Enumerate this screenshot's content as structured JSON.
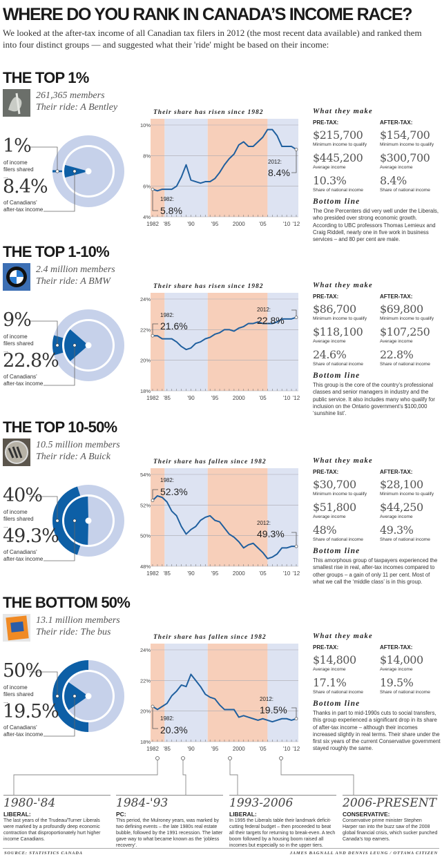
{
  "header": {
    "title": "WHERE DO YOU RANK IN CANADA’S INCOME RACE?",
    "intro": "We looked at the after-tax income of all Canadian tax filers in 2012 (the most recent data available) and ranked them into four distinct groups — and suggested what their 'ride' might be based on their income:"
  },
  "colors": {
    "dark_blue": "#0d5fa6",
    "light_blue": "#c6d1ea",
    "line": "#1f5f9e",
    "liberal_shade": "#f7cfba",
    "conservative_shade": "#dde3f2"
  },
  "sections": [
    {
      "title": "THE TOP 1%",
      "members": "261,365 members",
      "ride": "Their ride: A Bentley",
      "logo_icon": "bentley-hood-ornament-icon",
      "donut": {
        "filers_pct": "1%",
        "filers_label": "of income filers shared ...",
        "income_pct": "8.4%",
        "income_label": "of Canadians' after-tax income",
        "filers_share": 1,
        "income_share": 8.4
      },
      "make": {
        "title": "What they make",
        "pre_label": "PRE-TAX:",
        "after_label": "AFTER-TAX:",
        "rows": [
          {
            "pre_value": "$215,700",
            "pre_sub": "Minimum income to qualify",
            "after_value": "$154,700",
            "after_sub": "Minimum income to qualify"
          },
          {
            "pre_value": "$445,200",
            "pre_sub": "Average income",
            "after_value": "$300,700",
            "after_sub": "Average income"
          },
          {
            "pre_value": "10.3%",
            "pre_sub": "Share of national income",
            "after_value": "8.4%",
            "after_sub": "Share of national income"
          }
        ]
      },
      "bottom_line": {
        "title": "Bottom line",
        "text": "The One Percenters did very well under the Liberals, who presided over strong economic growth. According to UBC professors Thomas Lemieux and Craig Riddell, nearly one in five work in business services – and 80 per cent are male."
      }
    },
    {
      "title": "THE TOP 1-10%",
      "members": "2.4 million members",
      "ride": "Their ride: A BMW",
      "logo_icon": "bmw-roundel-icon",
      "donut": {
        "filers_pct": "9%",
        "filers_label": "of income filers shared ...",
        "income_pct": "22.8%",
        "income_label": "of Canadians' after-tax income",
        "filers_share": 9,
        "income_share": 22.8
      },
      "make": {
        "title": "What they make",
        "pre_label": "PRE-TAX:",
        "after_label": "AFTER-TAX:",
        "rows": [
          {
            "pre_value": "$86,700",
            "pre_sub": "Minimum income to qualify",
            "after_value": "$69,800",
            "after_sub": "Minimum income to qualify"
          },
          {
            "pre_value": "$118,100",
            "pre_sub": "Average income",
            "after_value": "$107,250",
            "after_sub": "Average income"
          },
          {
            "pre_value": "24.6%",
            "pre_sub": "Share of national income",
            "after_value": "22.8%",
            "after_sub": "Share of national income"
          }
        ]
      },
      "bottom_line": {
        "title": "Bottom line",
        "text": "This group is the core of the country’s professional classes and senior managers in industry and the public service. It also includes many who qualify for inclusion on the Ontario government’s $100,000 ‘sunshine list’."
      }
    },
    {
      "title": "THE TOP 10-50%",
      "members": "10.5 million members",
      "ride": "Their ride: A Buick",
      "logo_icon": "buick-emblem-icon",
      "donut": {
        "filers_pct": "40%",
        "filers_label": "of income filers shared ...",
        "income_pct": "49.3%",
        "income_label": "of Canadians' after-tax income",
        "filers_share": 40,
        "income_share": 49.3
      },
      "make": {
        "title": "What they make",
        "pre_label": "PRE-TAX:",
        "after_label": "AFTER-TAX:",
        "rows": [
          {
            "pre_value": "$30,700",
            "pre_sub": "Minimum income to qualify",
            "after_value": "$28,100",
            "after_sub": "Minimum income to qualify"
          },
          {
            "pre_value": "$51,800",
            "pre_sub": "Average income",
            "after_value": "$44,250",
            "after_sub": "Average income"
          },
          {
            "pre_value": "48%",
            "pre_sub": "Share of national income",
            "after_value": "49.3%",
            "after_sub": "Share of national income"
          }
        ]
      },
      "bottom_line": {
        "title": "Bottom line",
        "text": "This amorphous group of taxpayers experienced the smallest rise in real, after-tax incomes compared to other groups – a gain of only 11 per cent. Most of what we call the ‘middle class’ is in this group."
      }
    },
    {
      "title": "THE BOTTOM 50%",
      "members": "13.1 million members",
      "ride": "Their ride: The bus",
      "logo_icon": "bus-ticket-icon",
      "donut": {
        "filers_pct": "50%",
        "filers_label": "of income filers shared ...",
        "income_pct": "19.5%",
        "income_label": "of Canadians' after-tax income",
        "filers_share": 50,
        "income_share": 19.5
      },
      "make": {
        "title": "What they make",
        "pre_label": "PRE-TAX:",
        "after_label": "AFTER-TAX:",
        "rows": [
          {
            "pre_value": "$14,800",
            "pre_sub": "Average income",
            "after_value": "$14,000",
            "after_sub": "Average income"
          },
          {
            "pre_value": "17.1%",
            "pre_sub": "Share of national income",
            "after_value": "19.5%",
            "after_sub": "Share of national income"
          }
        ]
      },
      "bottom_line": {
        "title": "Bottom line",
        "text": "Thanks in part to mid-1990s cuts to social transfers, this group experienced a significant drop in its share of after-tax income – although their incomes increased slightly in real terms. Their share under the first six years of the current Conservative government stayed roughly the same."
      }
    }
  ],
  "chart_data": [
    {
      "type": "line",
      "title": "Their share has risen since 1982",
      "x": [
        1982,
        1983,
        1984,
        1985,
        1986,
        1987,
        1988,
        1989,
        1990,
        1991,
        1992,
        1993,
        1994,
        1995,
        1996,
        1997,
        1998,
        1999,
        2000,
        2001,
        2002,
        2003,
        2004,
        2005,
        2006,
        2007,
        2008,
        2009,
        2010,
        2011,
        2012
      ],
      "values": [
        5.8,
        5.7,
        5.8,
        5.8,
        5.8,
        6.0,
        6.6,
        7.4,
        6.4,
        6.3,
        6.2,
        6.3,
        6.3,
        6.5,
        6.9,
        7.4,
        7.8,
        8.1,
        8.7,
        8.9,
        8.6,
        8.6,
        8.9,
        9.2,
        9.7,
        9.7,
        9.3,
        8.6,
        8.6,
        8.6,
        8.4
      ],
      "ylim": [
        4,
        10
      ],
      "yticks": [
        4,
        6,
        8,
        10
      ],
      "ytick_labels": [
        "4%",
        "6%",
        "8%",
        "10%"
      ],
      "xtick_years": [
        1982,
        1985,
        1990,
        1995,
        2000,
        2005,
        2010,
        2012
      ],
      "xtick_labels": [
        "1982",
        "'85",
        "'90",
        "'95",
        "2000",
        "'05",
        "'10",
        "'12"
      ],
      "grid": true,
      "start_label": "1982:",
      "start_value": "5.8%",
      "end_label": "2012:",
      "end_value": "8.4%"
    },
    {
      "type": "line",
      "title": "Their share has risen since 1982",
      "x": [
        1982,
        1983,
        1984,
        1985,
        1986,
        1987,
        1988,
        1989,
        1990,
        1991,
        1992,
        1993,
        1994,
        1995,
        1996,
        1997,
        1998,
        1999,
        2000,
        2001,
        2002,
        2003,
        2004,
        2005,
        2006,
        2007,
        2008,
        2009,
        2010,
        2011,
        2012
      ],
      "values": [
        21.6,
        21.6,
        21.4,
        21.4,
        21.4,
        21.2,
        20.9,
        20.7,
        20.8,
        21.1,
        21.2,
        21.4,
        21.5,
        21.7,
        21.8,
        22.0,
        22.0,
        21.9,
        22.1,
        22.2,
        22.4,
        22.4,
        22.5,
        22.4,
        22.4,
        22.4,
        22.5,
        22.7,
        22.7,
        22.7,
        22.8
      ],
      "ylim": [
        18,
        24
      ],
      "yticks": [
        18,
        20,
        22,
        24
      ],
      "ytick_labels": [
        "18%",
        "20%",
        "22%",
        "24%"
      ],
      "xtick_years": [
        1982,
        1985,
        1990,
        1995,
        2000,
        2005,
        2010,
        2012
      ],
      "xtick_labels": [
        "1982",
        "'85",
        "'90",
        "'95",
        "2000",
        "'05",
        "'10",
        "'12"
      ],
      "grid": true,
      "start_label": "1982:",
      "start_value": "21.6%",
      "end_label": "2012:",
      "end_value": "22.8%"
    },
    {
      "type": "line",
      "title": "Their share has fallen since 1982",
      "x": [
        1982,
        1983,
        1984,
        1985,
        1986,
        1987,
        1988,
        1989,
        1990,
        1991,
        1992,
        1993,
        1994,
        1995,
        1996,
        1997,
        1998,
        1999,
        2000,
        2001,
        2002,
        2003,
        2004,
        2005,
        2006,
        2007,
        2008,
        2009,
        2010,
        2011,
        2012
      ],
      "values": [
        52.3,
        52.6,
        52.5,
        52.2,
        51.6,
        51.3,
        50.6,
        50.1,
        50.4,
        50.6,
        51.0,
        51.2,
        51.3,
        51.0,
        50.9,
        50.5,
        50.1,
        49.9,
        49.6,
        49.2,
        49.4,
        49.5,
        49.2,
        48.9,
        48.5,
        48.6,
        48.8,
        49.2,
        49.2,
        49.3,
        49.3
      ],
      "ylim": [
        48,
        54
      ],
      "yticks": [
        48,
        50,
        52,
        54
      ],
      "ytick_labels": [
        "48%",
        "50%",
        "52%",
        "54%"
      ],
      "xtick_years": [
        1982,
        1985,
        1990,
        1995,
        2000,
        2005,
        2010,
        2012
      ],
      "xtick_labels": [
        "1982",
        "'85",
        "'90",
        "'95",
        "2000",
        "'05",
        "'10",
        "'12"
      ],
      "grid": true,
      "start_label": "1982:",
      "start_value": "52.3%",
      "end_label": "2012:",
      "end_value": "49.3%"
    },
    {
      "type": "line",
      "title": "Their share has fallen since 1982",
      "x": [
        1982,
        1983,
        1984,
        1985,
        1986,
        1987,
        1988,
        1989,
        1990,
        1991,
        1992,
        1993,
        1994,
        1995,
        1996,
        1997,
        1998,
        1999,
        2000,
        2001,
        2002,
        2003,
        2004,
        2005,
        2006,
        2007,
        2008,
        2009,
        2010,
        2011,
        2012
      ],
      "values": [
        20.3,
        20.1,
        20.3,
        20.5,
        21.0,
        21.3,
        21.7,
        21.6,
        22.4,
        22.0,
        21.6,
        21.1,
        20.9,
        20.8,
        20.4,
        20.1,
        20.1,
        20.1,
        19.6,
        19.7,
        19.6,
        19.5,
        19.4,
        19.5,
        19.4,
        19.3,
        19.4,
        19.5,
        19.5,
        19.4,
        19.5
      ],
      "ylim": [
        18,
        24
      ],
      "yticks": [
        18,
        20,
        22,
        24
      ],
      "ytick_labels": [
        "18%",
        "20%",
        "22%",
        "24%"
      ],
      "xtick_years": [
        1982,
        1985,
        1990,
        1995,
        2000,
        2005,
        2010,
        2012
      ],
      "xtick_labels": [
        "1982",
        "'85",
        "'90",
        "'95",
        "2000",
        "'05",
        "'10",
        "'12"
      ],
      "grid": true,
      "start_label": "1982:",
      "start_value": "20.3%",
      "end_label": "2012:",
      "end_value": "19.5%"
    }
  ],
  "periods": [
    {
      "start": 1982,
      "end": 1984.5,
      "party": "liberal"
    },
    {
      "start": 1984.5,
      "end": 1993.5,
      "party": "conservative"
    },
    {
      "start": 1993.5,
      "end": 2006,
      "party": "liberal"
    },
    {
      "start": 2006,
      "end": 2012,
      "party": "conservative"
    }
  ],
  "timeline": [
    {
      "years": "1980-'84",
      "party": "LIBERAL:",
      "text": "The last years of the Trudeau/Turner Liberals were marked by a profoundly deep economic contraction that disproportionately hurt higher income Canadians."
    },
    {
      "years": "1984-'93",
      "party": "PC:",
      "text": "This period, the Mulroney years, was marked by two defining events – the late 1980s real estate bubble, followed by the 1991 recession. The latter gave way to what became known as the ‘jobless recovery’."
    },
    {
      "years": "1993-2006",
      "party": "LIBERAL:",
      "text": "In 1995 the Liberals table their landmark deficit-cutting federal budget – then proceeded to beat all their targets for returning to break-even. A tech boom followed by a housing boom raised all incomes but especially so in the upper tiers."
    },
    {
      "years": "2006-PRESENT",
      "party": "CONSERVATIVE:",
      "text": "Conservative prime minister Stephen Harper ran into the buzz saw of the 2008 global financial crisis, which sucker punched Canada’s top earners."
    }
  ],
  "footer": {
    "source": "SOURCE: STATISTICS CANADA",
    "credit": "JAMES BAGNALL AND DENNIS LEUNG / OTTAWA CITIZEN"
  }
}
